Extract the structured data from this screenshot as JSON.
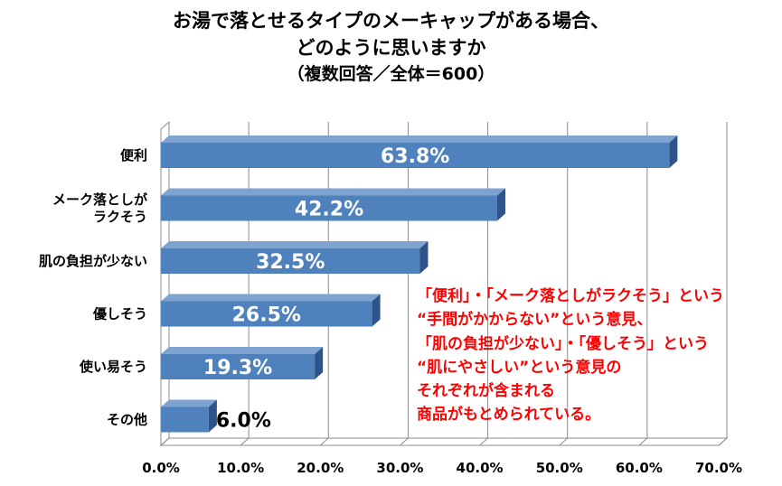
{
  "title": {
    "line1": "お湯で落とせるタイプのメーキャップがある場合、",
    "line2": "どのように思いますか",
    "line3": "（複数回答／全体＝600）"
  },
  "colors": {
    "bar_front": "#4f81bd",
    "bar_top": "#7ea3d0",
    "bar_side": "#2d5388",
    "annotation": "#ff0000"
  },
  "annotation": {
    "lines": [
      "「便利」・「メーク落としがラクそう」という",
      "“手間がかからない”という意見、",
      "「肌の負担が少ない」・「優しそう」という",
      "“肌にやさしい”という意見の",
      "それぞれが含まれる",
      "商品がもとめられている。"
    ]
  },
  "chart_data": {
    "type": "bar",
    "orientation": "horizontal",
    "style": "3d",
    "categories": [
      [
        "便利"
      ],
      [
        "メーク落としが",
        "ラクそう"
      ],
      [
        "肌の負担が少ない"
      ],
      [
        "優しそう"
      ],
      [
        "使い易そう"
      ],
      [
        "その他"
      ]
    ],
    "values": [
      63.8,
      42.2,
      32.5,
      26.5,
      19.3,
      6.0
    ],
    "value_labels": [
      "63.8%",
      "42.2%",
      "32.5%",
      "26.5%",
      "19.3%",
      "6.0%"
    ],
    "xlim": [
      0,
      70
    ],
    "xticks": [
      0,
      10,
      20,
      30,
      40,
      50,
      60,
      70
    ],
    "xtick_labels": [
      "0.0%",
      "10.0%",
      "20.0%",
      "30.0%",
      "40.0%",
      "50.0%",
      "60.0%",
      "70.0%"
    ],
    "grid": true
  }
}
